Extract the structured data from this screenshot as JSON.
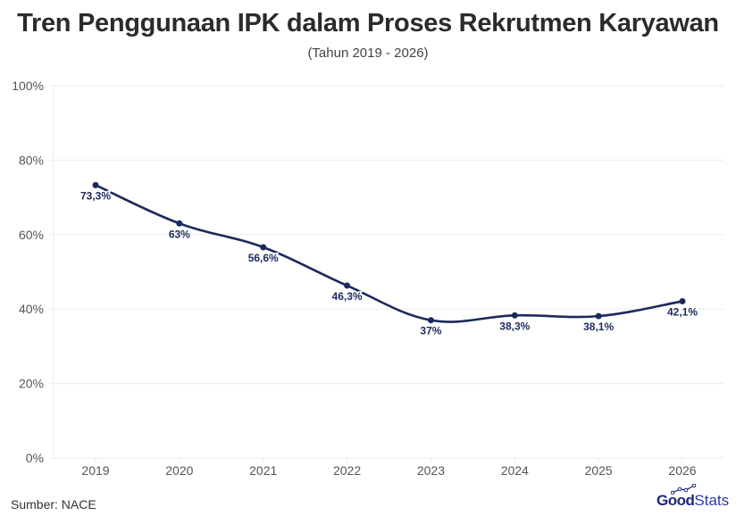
{
  "header": {
    "title": "Tren Penggunaan IPK dalam Proses Rekrutmen Karyawan",
    "subtitle": "(Tahun 2019 - 2026)"
  },
  "footer": {
    "source": "Sumber: NACE",
    "logo_bold": "Good",
    "logo_light": "Stats"
  },
  "colors": {
    "line": "#1b2a5c",
    "grid": "#ebebeb",
    "axis_text": "#555555",
    "label_text": "#1b2a5c"
  },
  "chart_data": {
    "type": "line",
    "title": "Tren Penggunaan IPK dalam Proses Rekrutmen Karyawan",
    "subtitle": "(Tahun 2019 - 2026)",
    "xlabel": "",
    "ylabel": "",
    "categories": [
      "2019",
      "2020",
      "2021",
      "2022",
      "2023",
      "2024",
      "2025",
      "2026"
    ],
    "values": [
      73.3,
      63,
      56.6,
      46.3,
      37,
      38.3,
      38.1,
      42.1
    ],
    "data_labels": [
      "73,3%",
      "63%",
      "56,6%",
      "46,3%",
      "37%",
      "38,3%",
      "38,1%",
      "42,1%"
    ],
    "ylim": [
      0,
      100
    ],
    "yticks": [
      "0%",
      "20%",
      "40%",
      "60%",
      "80%",
      "100%"
    ],
    "grid": true,
    "legend": "none",
    "source": "Sumber: NACE"
  }
}
